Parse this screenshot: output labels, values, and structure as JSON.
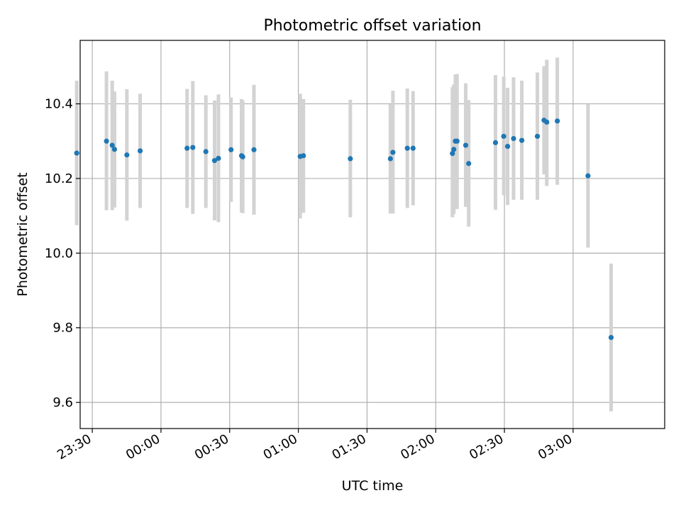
{
  "chart_data": {
    "type": "scatter",
    "title": "Photometric offset variation",
    "xlabel": "UTC time",
    "ylabel": "Photometric offset",
    "grid": true,
    "x_ticks": [
      "23:30",
      "00:00",
      "00:30",
      "01:00",
      "01:30",
      "02:00",
      "02:30",
      "03:00"
    ],
    "y_ticks": [
      "9.6",
      "9.8",
      "10.0",
      "10.2",
      "10.4"
    ],
    "y_tick_values": [
      9.6,
      9.8,
      10.0,
      10.2,
      10.4
    ],
    "ylim": [
      9.53,
      10.57
    ],
    "xlim_minutes": [
      -35.3,
      220.0
    ],
    "x_tick_minutes": [
      -30,
      0,
      30,
      60,
      90,
      120,
      150,
      180
    ],
    "points": [
      {
        "t": -36.8,
        "y": 10.268,
        "lo": 10.075,
        "hi": 10.462
      },
      {
        "t": -23.8,
        "y": 10.3,
        "lo": 10.115,
        "hi": 10.487
      },
      {
        "t": -21.3,
        "y": 10.289,
        "lo": 10.115,
        "hi": 10.462
      },
      {
        "t": -20.3,
        "y": 10.278,
        "lo": 10.122,
        "hi": 10.433
      },
      {
        "t": -14.9,
        "y": 10.263,
        "lo": 10.087,
        "hi": 10.439
      },
      {
        "t": -9.1,
        "y": 10.274,
        "lo": 10.121,
        "hi": 10.427
      },
      {
        "t": 11.4,
        "y": 10.281,
        "lo": 10.121,
        "hi": 10.44
      },
      {
        "t": 13.9,
        "y": 10.283,
        "lo": 10.105,
        "hi": 10.461
      },
      {
        "t": 19.6,
        "y": 10.272,
        "lo": 10.121,
        "hi": 10.423
      },
      {
        "t": 23.4,
        "y": 10.248,
        "lo": 10.088,
        "hi": 10.409
      },
      {
        "t": 25.1,
        "y": 10.254,
        "lo": 10.083,
        "hi": 10.425
      },
      {
        "t": 30.6,
        "y": 10.277,
        "lo": 10.137,
        "hi": 10.417
      },
      {
        "t": 35.2,
        "y": 10.261,
        "lo": 10.109,
        "hi": 10.413
      },
      {
        "t": 35.7,
        "y": 10.258,
        "lo": 10.107,
        "hi": 10.409
      },
      {
        "t": 40.6,
        "y": 10.277,
        "lo": 10.103,
        "hi": 10.451
      },
      {
        "t": 60.8,
        "y": 10.259,
        "lo": 10.093,
        "hi": 10.427
      },
      {
        "t": 62.2,
        "y": 10.261,
        "lo": 10.108,
        "hi": 10.413
      },
      {
        "t": 82.7,
        "y": 10.253,
        "lo": 10.096,
        "hi": 10.411
      },
      {
        "t": 100.2,
        "y": 10.253,
        "lo": 10.106,
        "hi": 10.399
      },
      {
        "t": 101.3,
        "y": 10.27,
        "lo": 10.106,
        "hi": 10.435
      },
      {
        "t": 107.6,
        "y": 10.281,
        "lo": 10.121,
        "hi": 10.441
      },
      {
        "t": 110.1,
        "y": 10.281,
        "lo": 10.128,
        "hi": 10.434
      },
      {
        "t": 127.3,
        "y": 10.267,
        "lo": 10.096,
        "hi": 10.445
      },
      {
        "t": 127.9,
        "y": 10.278,
        "lo": 10.105,
        "hi": 10.452
      },
      {
        "t": 128.6,
        "y": 10.3,
        "lo": 10.123,
        "hi": 10.479
      },
      {
        "t": 129.3,
        "y": 10.3,
        "lo": 10.118,
        "hi": 10.48
      },
      {
        "t": 133.1,
        "y": 10.289,
        "lo": 10.124,
        "hi": 10.455
      },
      {
        "t": 134.4,
        "y": 10.24,
        "lo": 10.071,
        "hi": 10.41
      },
      {
        "t": 146.1,
        "y": 10.296,
        "lo": 10.116,
        "hi": 10.477
      },
      {
        "t": 149.7,
        "y": 10.313,
        "lo": 10.155,
        "hi": 10.473
      },
      {
        "t": 151.4,
        "y": 10.286,
        "lo": 10.129,
        "hi": 10.443
      },
      {
        "t": 154.0,
        "y": 10.307,
        "lo": 10.143,
        "hi": 10.471
      },
      {
        "t": 157.6,
        "y": 10.302,
        "lo": 10.143,
        "hi": 10.462
      },
      {
        "t": 164.4,
        "y": 10.313,
        "lo": 10.143,
        "hi": 10.484
      },
      {
        "t": 167.3,
        "y": 10.356,
        "lo": 10.211,
        "hi": 10.501
      },
      {
        "t": 168.5,
        "y": 10.351,
        "lo": 10.18,
        "hi": 10.518
      },
      {
        "t": 173.1,
        "y": 10.354,
        "lo": 10.183,
        "hi": 10.524
      },
      {
        "t": 186.5,
        "y": 10.207,
        "lo": 10.015,
        "hi": 10.399
      },
      {
        "t": 196.6,
        "y": 9.774,
        "lo": 9.576,
        "hi": 9.972
      }
    ],
    "colors": {
      "point": "#1f77b4",
      "errorbar": "#d3d3d3",
      "grid": "#b0b0b0",
      "axis": "#000000"
    }
  }
}
